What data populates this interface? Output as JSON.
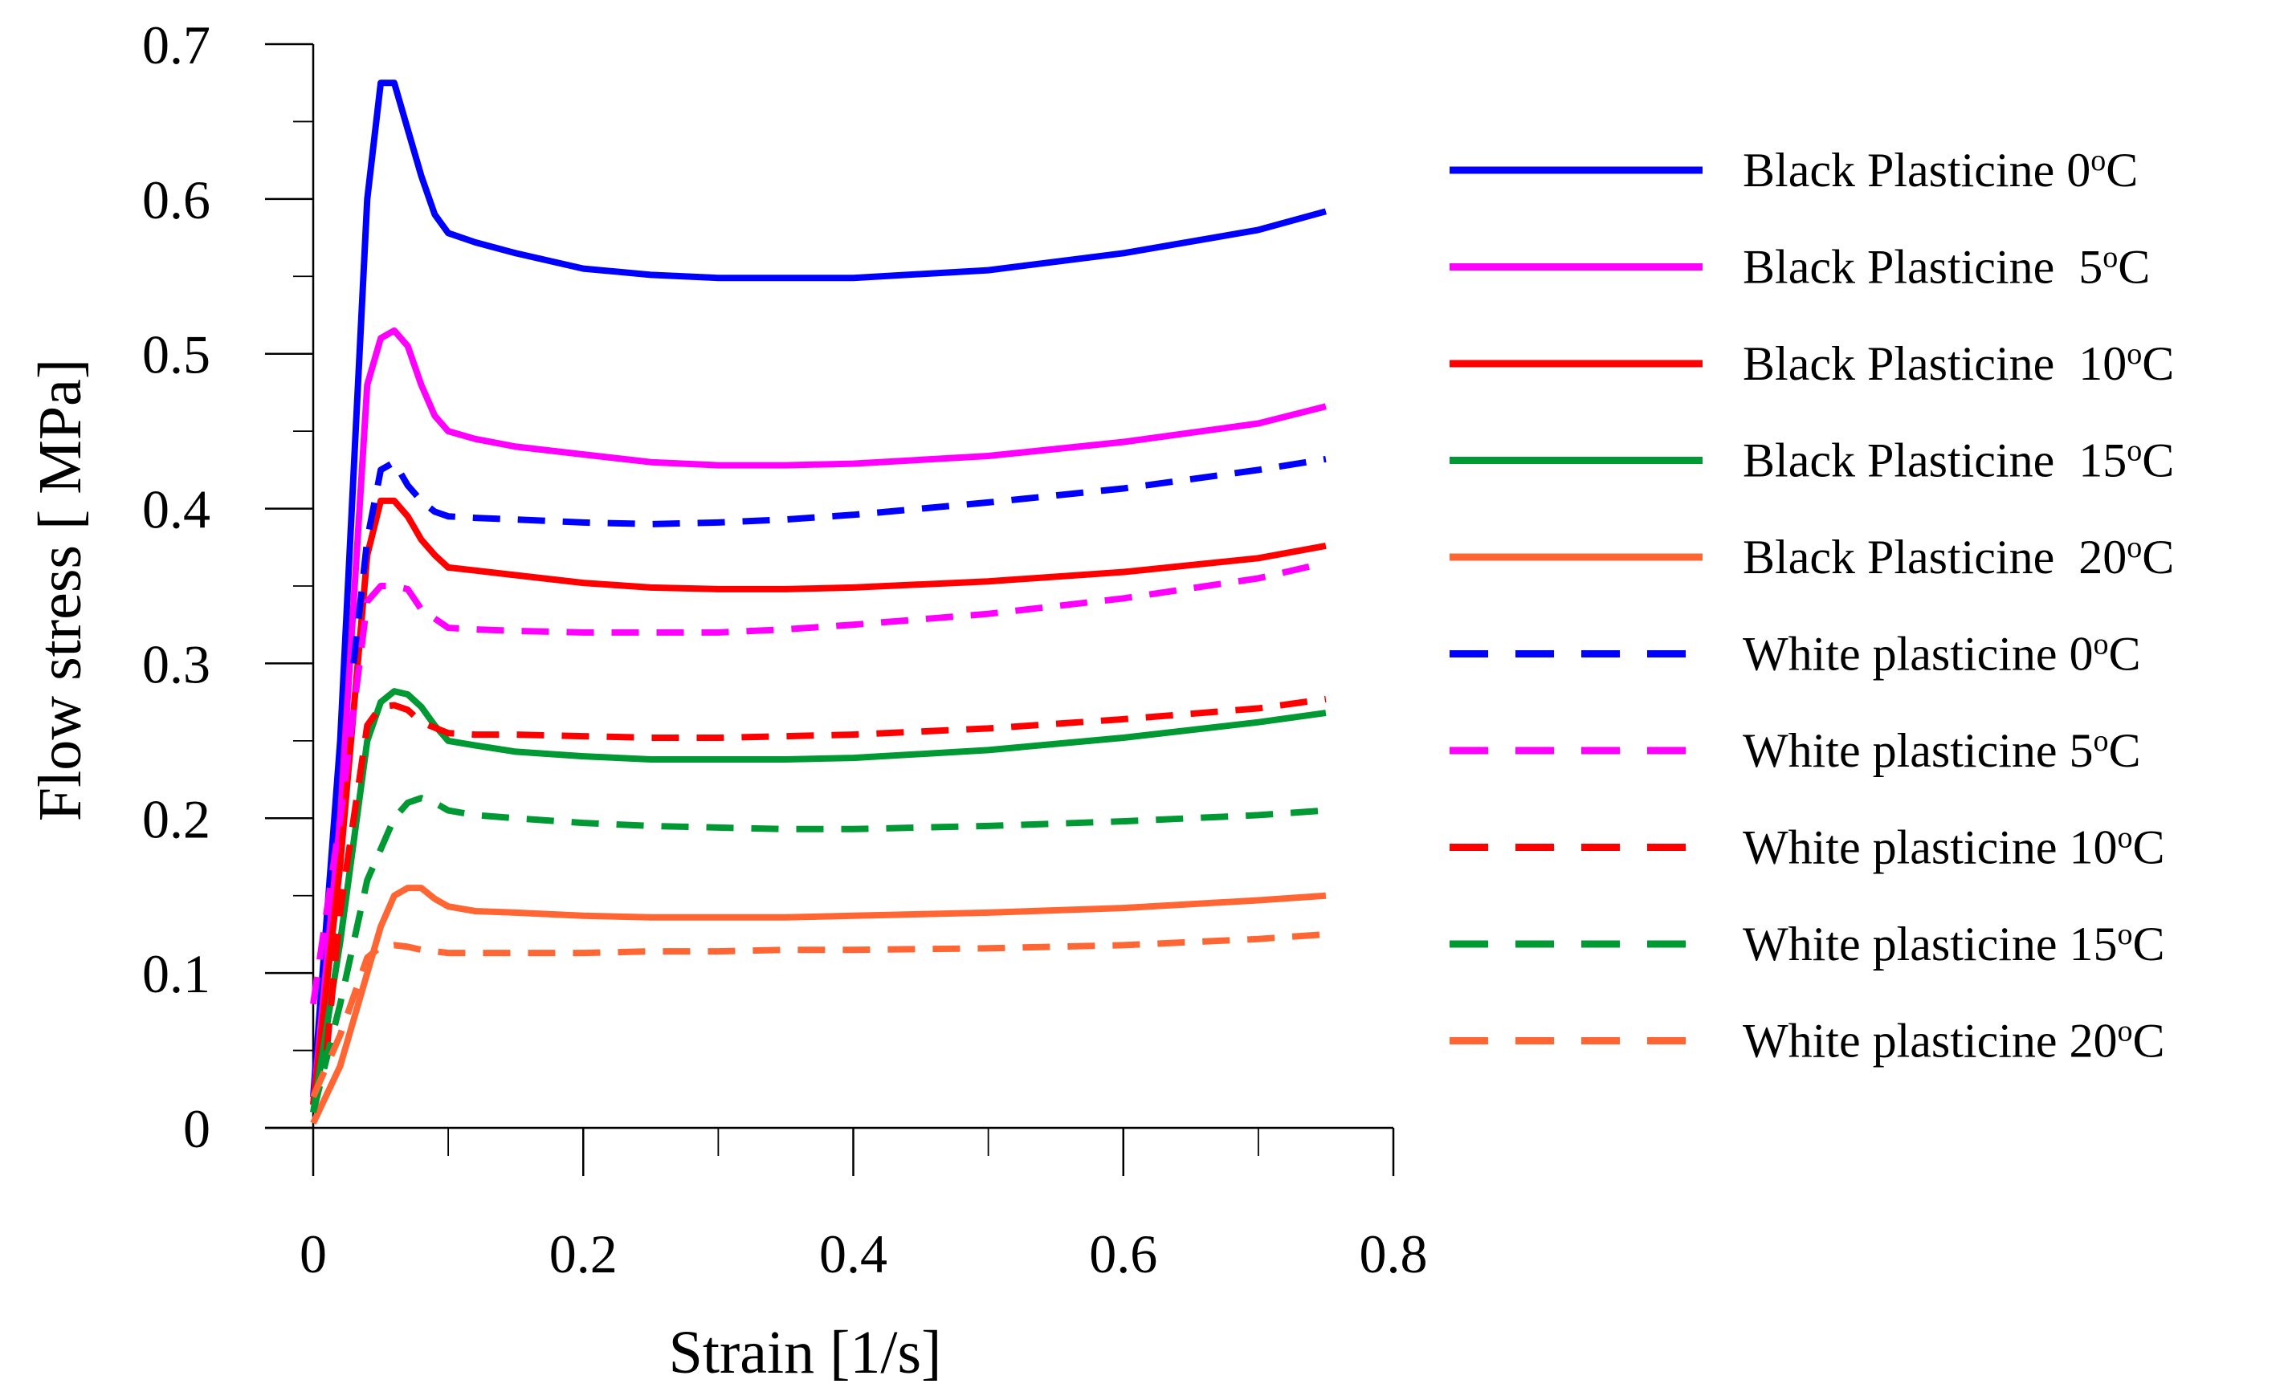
{
  "chart_data": {
    "type": "line",
    "title": "",
    "xlabel": "Strain [1/s]",
    "ylabel": "Flow stress [ MPa]",
    "xlim": [
      0,
      0.8
    ],
    "ylim": [
      0,
      0.7
    ],
    "xticks": [
      "0",
      "0.2",
      "0.4",
      "0.6",
      "0.8"
    ],
    "yticks": [
      "0",
      "0.1",
      "0.2",
      "0.3",
      "0.4",
      "0.5",
      "0.6",
      "0.7"
    ],
    "grid": false,
    "legend_position": "right",
    "series": [
      {
        "name": "Black Plasticine 0",
        "unit": "oC",
        "color": "#0000ff",
        "dash": "solid",
        "x": [
          0,
          0.02,
          0.04,
          0.05,
          0.06,
          0.07,
          0.08,
          0.09,
          0.1,
          0.12,
          0.15,
          0.2,
          0.25,
          0.3,
          0.35,
          0.4,
          0.5,
          0.6,
          0.7,
          0.75
        ],
        "y": [
          0.02,
          0.25,
          0.6,
          0.675,
          0.675,
          0.645,
          0.615,
          0.59,
          0.578,
          0.572,
          0.565,
          0.555,
          0.551,
          0.549,
          0.549,
          0.549,
          0.554,
          0.565,
          0.58,
          0.592
        ]
      },
      {
        "name": "Black Plasticine  5",
        "unit": "oC",
        "color": "#ff00ff",
        "dash": "solid",
        "x": [
          0,
          0.02,
          0.04,
          0.05,
          0.06,
          0.07,
          0.08,
          0.09,
          0.1,
          0.12,
          0.15,
          0.2,
          0.25,
          0.3,
          0.35,
          0.4,
          0.5,
          0.6,
          0.7,
          0.75
        ],
        "y": [
          0.015,
          0.2,
          0.48,
          0.51,
          0.515,
          0.505,
          0.48,
          0.46,
          0.45,
          0.445,
          0.44,
          0.435,
          0.43,
          0.428,
          0.428,
          0.429,
          0.434,
          0.443,
          0.455,
          0.466
        ]
      },
      {
        "name": "Black Plasticine  10",
        "unit": "oC",
        "color": "#ff0000",
        "dash": "solid",
        "x": [
          0,
          0.02,
          0.04,
          0.05,
          0.06,
          0.07,
          0.08,
          0.09,
          0.1,
          0.12,
          0.15,
          0.2,
          0.25,
          0.3,
          0.35,
          0.4,
          0.5,
          0.6,
          0.7,
          0.75
        ],
        "y": [
          0.015,
          0.17,
          0.37,
          0.405,
          0.405,
          0.395,
          0.38,
          0.37,
          0.362,
          0.36,
          0.357,
          0.352,
          0.349,
          0.348,
          0.348,
          0.349,
          0.353,
          0.359,
          0.368,
          0.376
        ]
      },
      {
        "name": "Black Plasticine  15",
        "unit": "oC",
        "color": "#009933",
        "dash": "solid",
        "x": [
          0,
          0.02,
          0.04,
          0.05,
          0.06,
          0.07,
          0.08,
          0.09,
          0.1,
          0.12,
          0.15,
          0.2,
          0.25,
          0.3,
          0.35,
          0.4,
          0.5,
          0.6,
          0.7,
          0.75
        ],
        "y": [
          0.01,
          0.12,
          0.25,
          0.275,
          0.282,
          0.28,
          0.272,
          0.26,
          0.25,
          0.247,
          0.243,
          0.24,
          0.238,
          0.238,
          0.238,
          0.239,
          0.244,
          0.252,
          0.262,
          0.268
        ]
      },
      {
        "name": "Black Plasticine  20",
        "unit": "oC",
        "color": "#ff6633",
        "dash": "solid",
        "x": [
          0,
          0.02,
          0.04,
          0.05,
          0.06,
          0.07,
          0.08,
          0.09,
          0.1,
          0.12,
          0.15,
          0.2,
          0.25,
          0.3,
          0.35,
          0.4,
          0.5,
          0.6,
          0.7,
          0.75
        ],
        "y": [
          0.003,
          0.04,
          0.1,
          0.13,
          0.15,
          0.155,
          0.155,
          0.148,
          0.143,
          0.14,
          0.139,
          0.137,
          0.136,
          0.136,
          0.136,
          0.137,
          0.139,
          0.142,
          0.147,
          0.15
        ]
      },
      {
        "name": "White plasticine 0",
        "unit": "oC",
        "color": "#0000ff",
        "dash": "dashed",
        "x": [
          0.03,
          0.04,
          0.05,
          0.06,
          0.07,
          0.08,
          0.09,
          0.1,
          0.12,
          0.15,
          0.2,
          0.25,
          0.3,
          0.35,
          0.4,
          0.5,
          0.6,
          0.7,
          0.75
        ],
        "y": [
          0.3,
          0.38,
          0.425,
          0.43,
          0.415,
          0.405,
          0.398,
          0.395,
          0.394,
          0.393,
          0.391,
          0.39,
          0.391,
          0.393,
          0.396,
          0.404,
          0.413,
          0.425,
          0.432
        ]
      },
      {
        "name": "White plasticine 5",
        "unit": "oC",
        "color": "#ff00ff",
        "dash": "dashed",
        "x": [
          0,
          0.02,
          0.04,
          0.05,
          0.06,
          0.07,
          0.08,
          0.1,
          0.12,
          0.15,
          0.2,
          0.25,
          0.3,
          0.35,
          0.4,
          0.5,
          0.6,
          0.7,
          0.75
        ],
        "y": [
          0.08,
          0.2,
          0.34,
          0.35,
          0.35,
          0.348,
          0.335,
          0.323,
          0.322,
          0.321,
          0.32,
          0.32,
          0.32,
          0.322,
          0.325,
          0.332,
          0.342,
          0.355,
          0.365
        ]
      },
      {
        "name": "White plasticine 10",
        "unit": "oC",
        "color": "#ff0000",
        "dash": "dashed",
        "x": [
          0.01,
          0.02,
          0.04,
          0.05,
          0.06,
          0.07,
          0.08,
          0.1,
          0.12,
          0.15,
          0.2,
          0.25,
          0.3,
          0.35,
          0.4,
          0.5,
          0.6,
          0.7,
          0.75
        ],
        "y": [
          0.05,
          0.14,
          0.26,
          0.272,
          0.273,
          0.27,
          0.262,
          0.255,
          0.254,
          0.254,
          0.253,
          0.252,
          0.252,
          0.253,
          0.254,
          0.258,
          0.264,
          0.271,
          0.277
        ]
      },
      {
        "name": "White plasticine 15",
        "unit": "oC",
        "color": "#009933",
        "dash": "dashed",
        "x": [
          0,
          0.02,
          0.04,
          0.05,
          0.06,
          0.07,
          0.08,
          0.09,
          0.1,
          0.12,
          0.15,
          0.2,
          0.25,
          0.3,
          0.35,
          0.4,
          0.5,
          0.6,
          0.7,
          0.75
        ],
        "y": [
          0.01,
          0.08,
          0.16,
          0.18,
          0.2,
          0.21,
          0.213,
          0.21,
          0.205,
          0.202,
          0.2,
          0.197,
          0.195,
          0.194,
          0.193,
          0.193,
          0.195,
          0.198,
          0.202,
          0.205
        ]
      },
      {
        "name": "White plasticine 20",
        "unit": "oC",
        "color": "#ff6633",
        "dash": "dashed",
        "x": [
          0,
          0.02,
          0.04,
          0.05,
          0.06,
          0.07,
          0.08,
          0.1,
          0.12,
          0.15,
          0.2,
          0.25,
          0.3,
          0.35,
          0.4,
          0.5,
          0.6,
          0.7,
          0.75
        ],
        "y": [
          0.02,
          0.06,
          0.11,
          0.117,
          0.118,
          0.117,
          0.115,
          0.113,
          0.113,
          0.113,
          0.113,
          0.114,
          0.114,
          0.115,
          0.115,
          0.116,
          0.118,
          0.122,
          0.125
        ]
      }
    ]
  }
}
